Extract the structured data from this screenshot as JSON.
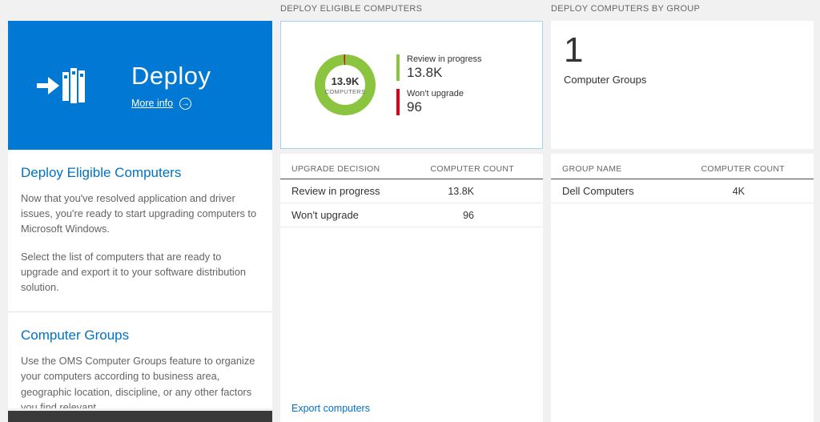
{
  "colors": {
    "tile_blue": "#0078d4",
    "accent_blue": "#0072c6",
    "green": "#8bc53f",
    "red": "#e0001b",
    "bar_blue": "#1283c8",
    "dark_strip": "#3a3a3a"
  },
  "icons": {
    "arrow_right": "→"
  },
  "left_tile": {
    "title": "Deploy",
    "more_info": "More info"
  },
  "left_panel": {
    "sections": [
      {
        "heading": "Deploy Eligible Computers",
        "paragraphs": [
          "Now that you've resolved application and driver issues, you're ready to start upgrading computers to Microsoft Windows.",
          "Select the list of computers that are ready to upgrade and export it to your software distribution solution."
        ]
      },
      {
        "heading": "Computer Groups",
        "paragraphs": [
          "Use the OMS Computer Groups feature to organize your computers according to business area, geographic location, discipline, or any other factors you find relevant."
        ]
      }
    ]
  },
  "middle": {
    "header": "DEPLOY ELIGIBLE COMPUTERS",
    "donut": {
      "center_value": "13.9K",
      "center_label": "COMPUTERS",
      "legend": [
        {
          "label": "Review in progress",
          "value": "13.8K",
          "color": "#8bc53f"
        },
        {
          "label": "Won't upgrade",
          "value": "96",
          "color": "#e0001b"
        }
      ]
    },
    "table": {
      "columns": [
        "UPGRADE DECISION",
        "COMPUTER COUNT"
      ],
      "rows": [
        {
          "label": "Review in progress",
          "value": "13.8K",
          "bar_pct": 100
        },
        {
          "label": "Won't upgrade",
          "value": "96",
          "bar_pct": 3
        }
      ]
    },
    "export_link": "Export computers"
  },
  "right": {
    "header": "DEPLOY COMPUTERS BY GROUP",
    "count": "1",
    "count_label": "Computer Groups",
    "table": {
      "columns": [
        "GROUP NAME",
        "COMPUTER COUNT"
      ],
      "rows": [
        {
          "label": "Dell Computers",
          "value": "4K",
          "bar_pct": 100
        }
      ]
    }
  },
  "chart_data": {
    "type": "pie",
    "title": "DEPLOY ELIGIBLE COMPUTERS",
    "center_value": "13.9K",
    "center_label": "COMPUTERS",
    "legend_position": "right",
    "segments": [
      {
        "label": "Review in progress",
        "value": 13800,
        "color": "#8bc53f"
      },
      {
        "label": "Won't upgrade",
        "value": 96,
        "color": "#e0001b"
      }
    ]
  }
}
